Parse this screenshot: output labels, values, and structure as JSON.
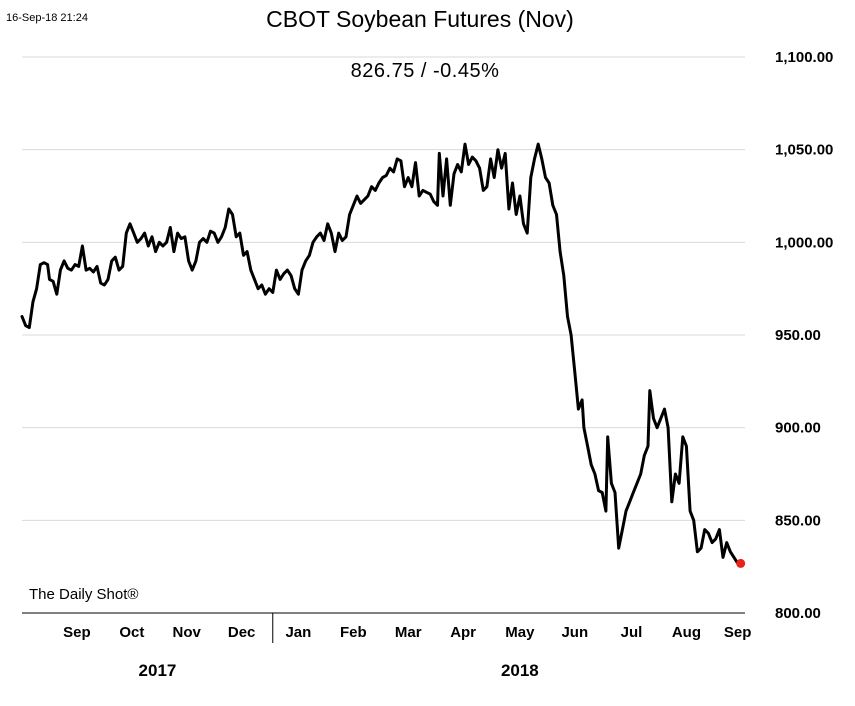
{
  "header": {
    "timestamp": "16-Sep-18 21:24",
    "title": "CBOT Soybean Futures (Nov)",
    "last_value": "826.75  /  -0.45%",
    "source": "The Daily Shot®"
  },
  "colors": {
    "line": "#000000",
    "marker": "#e8231c",
    "grid": "#d9d9d9",
    "axis": "#000000"
  },
  "chart_data": {
    "type": "line",
    "title": "CBOT Soybean Futures (Nov)",
    "xlabel": "",
    "ylabel": "",
    "ylim": [
      800,
      1100
    ],
    "yticks": [
      800,
      850,
      900,
      950,
      1000,
      1050,
      1100
    ],
    "ytick_labels": [
      "800.00",
      "850.00",
      "900.00",
      "950.00",
      "1,000.00",
      "1,050.00",
      "1,100.00"
    ],
    "y_axis_side": "right",
    "grid": "horizontal",
    "legend": "none",
    "x_range": [
      "2017-08-17",
      "2018-09-16"
    ],
    "month_ticks": [
      {
        "label": "Sep",
        "date": "2017-09-16"
      },
      {
        "label": "Oct",
        "date": "2017-10-16"
      },
      {
        "label": "Nov",
        "date": "2017-11-15"
      },
      {
        "label": "Dec",
        "date": "2017-12-15"
      },
      {
        "label": "Jan",
        "date": "2018-01-15"
      },
      {
        "label": "Feb",
        "date": "2018-02-14"
      },
      {
        "label": "Mar",
        "date": "2018-03-16"
      },
      {
        "label": "Apr",
        "date": "2018-04-15"
      },
      {
        "label": "May",
        "date": "2018-05-16"
      },
      {
        "label": "Jun",
        "date": "2018-06-15"
      },
      {
        "label": "Jul",
        "date": "2018-07-16"
      },
      {
        "label": "Aug",
        "date": "2018-08-15"
      },
      {
        "label": "Sep",
        "date": "2018-09-12"
      }
    ],
    "year_labels": [
      {
        "label": "2017",
        "date": "2017-10-30"
      },
      {
        "label": "2018",
        "date": "2018-05-16"
      }
    ],
    "year_divider": "2018-01-01",
    "series": [
      {
        "last_value": 826.75,
        "change_pct": -0.45,
        "points": [
          [
            "2017-08-17",
            960
          ],
          [
            "2017-08-19",
            955
          ],
          [
            "2017-08-21",
            954
          ],
          [
            "2017-08-23",
            968
          ],
          [
            "2017-08-25",
            975
          ],
          [
            "2017-08-27",
            988
          ],
          [
            "2017-08-29",
            989
          ],
          [
            "2017-08-31",
            988
          ],
          [
            "2017-09-01",
            980
          ],
          [
            "2017-09-03",
            979
          ],
          [
            "2017-09-05",
            972
          ],
          [
            "2017-09-07",
            985
          ],
          [
            "2017-09-09",
            990
          ],
          [
            "2017-09-11",
            986
          ],
          [
            "2017-09-13",
            985
          ],
          [
            "2017-09-15",
            988
          ],
          [
            "2017-09-17",
            987
          ],
          [
            "2017-09-19",
            998
          ],
          [
            "2017-09-21",
            985
          ],
          [
            "2017-09-23",
            986
          ],
          [
            "2017-09-25",
            984
          ],
          [
            "2017-09-27",
            987
          ],
          [
            "2017-09-29",
            978
          ],
          [
            "2017-10-01",
            977
          ],
          [
            "2017-10-03",
            980
          ],
          [
            "2017-10-05",
            990
          ],
          [
            "2017-10-07",
            992
          ],
          [
            "2017-10-09",
            985
          ],
          [
            "2017-10-11",
            987
          ],
          [
            "2017-10-13",
            1005
          ],
          [
            "2017-10-15",
            1010
          ],
          [
            "2017-10-17",
            1005
          ],
          [
            "2017-10-19",
            1000
          ],
          [
            "2017-10-21",
            1002
          ],
          [
            "2017-10-23",
            1005
          ],
          [
            "2017-10-25",
            998
          ],
          [
            "2017-10-27",
            1003
          ],
          [
            "2017-10-29",
            995
          ],
          [
            "2017-10-31",
            1000
          ],
          [
            "2017-11-02",
            998
          ],
          [
            "2017-11-04",
            1000
          ],
          [
            "2017-11-06",
            1008
          ],
          [
            "2017-11-08",
            995
          ],
          [
            "2017-11-10",
            1005
          ],
          [
            "2017-11-12",
            1002
          ],
          [
            "2017-11-14",
            1003
          ],
          [
            "2017-11-16",
            990
          ],
          [
            "2017-11-18",
            985
          ],
          [
            "2017-11-20",
            990
          ],
          [
            "2017-11-22",
            1000
          ],
          [
            "2017-11-24",
            1002
          ],
          [
            "2017-11-26",
            1000
          ],
          [
            "2017-11-28",
            1006
          ],
          [
            "2017-11-30",
            1005
          ],
          [
            "2017-12-02",
            1000
          ],
          [
            "2017-12-04",
            1003
          ],
          [
            "2017-12-06",
            1008
          ],
          [
            "2017-12-08",
            1018
          ],
          [
            "2017-12-10",
            1015
          ],
          [
            "2017-12-12",
            1003
          ],
          [
            "2017-12-14",
            1005
          ],
          [
            "2017-12-16",
            993
          ],
          [
            "2017-12-18",
            995
          ],
          [
            "2017-12-20",
            985
          ],
          [
            "2017-12-22",
            980
          ],
          [
            "2017-12-24",
            975
          ],
          [
            "2017-12-26",
            977
          ],
          [
            "2017-12-28",
            972
          ],
          [
            "2017-12-30",
            975
          ],
          [
            "2018-01-01",
            973
          ],
          [
            "2018-01-03",
            985
          ],
          [
            "2018-01-05",
            980
          ],
          [
            "2018-01-07",
            983
          ],
          [
            "2018-01-09",
            985
          ],
          [
            "2018-01-11",
            982
          ],
          [
            "2018-01-13",
            975
          ],
          [
            "2018-01-15",
            972
          ],
          [
            "2018-01-17",
            985
          ],
          [
            "2018-01-19",
            990
          ],
          [
            "2018-01-21",
            993
          ],
          [
            "2018-01-23",
            1000
          ],
          [
            "2018-01-25",
            1003
          ],
          [
            "2018-01-27",
            1005
          ],
          [
            "2018-01-29",
            1001
          ],
          [
            "2018-01-31",
            1010
          ],
          [
            "2018-02-02",
            1005
          ],
          [
            "2018-02-04",
            995
          ],
          [
            "2018-02-06",
            1005
          ],
          [
            "2018-02-08",
            1001
          ],
          [
            "2018-02-10",
            1003
          ],
          [
            "2018-02-12",
            1015
          ],
          [
            "2018-02-14",
            1020
          ],
          [
            "2018-02-16",
            1025
          ],
          [
            "2018-02-18",
            1021
          ],
          [
            "2018-02-20",
            1023
          ],
          [
            "2018-02-22",
            1025
          ],
          [
            "2018-02-24",
            1030
          ],
          [
            "2018-02-26",
            1028
          ],
          [
            "2018-02-28",
            1032
          ],
          [
            "2018-03-02",
            1035
          ],
          [
            "2018-03-04",
            1036
          ],
          [
            "2018-03-06",
            1040
          ],
          [
            "2018-03-08",
            1038
          ],
          [
            "2018-03-10",
            1045
          ],
          [
            "2018-03-12",
            1044
          ],
          [
            "2018-03-14",
            1030
          ],
          [
            "2018-03-16",
            1035
          ],
          [
            "2018-03-18",
            1030
          ],
          [
            "2018-03-20",
            1043
          ],
          [
            "2018-03-22",
            1025
          ],
          [
            "2018-03-24",
            1028
          ],
          [
            "2018-03-26",
            1027
          ],
          [
            "2018-03-28",
            1026
          ],
          [
            "2018-03-30",
            1022
          ],
          [
            "2018-04-01",
            1020
          ],
          [
            "2018-04-02",
            1048
          ],
          [
            "2018-04-04",
            1025
          ],
          [
            "2018-04-06",
            1045
          ],
          [
            "2018-04-08",
            1020
          ],
          [
            "2018-04-10",
            1037
          ],
          [
            "2018-04-12",
            1042
          ],
          [
            "2018-04-14",
            1038
          ],
          [
            "2018-04-16",
            1053
          ],
          [
            "2018-04-18",
            1042
          ],
          [
            "2018-04-20",
            1046
          ],
          [
            "2018-04-22",
            1044
          ],
          [
            "2018-04-24",
            1040
          ],
          [
            "2018-04-26",
            1028
          ],
          [
            "2018-04-28",
            1030
          ],
          [
            "2018-04-30",
            1045
          ],
          [
            "2018-05-02",
            1035
          ],
          [
            "2018-05-04",
            1050
          ],
          [
            "2018-05-06",
            1040
          ],
          [
            "2018-05-08",
            1048
          ],
          [
            "2018-05-10",
            1018
          ],
          [
            "2018-05-12",
            1032
          ],
          [
            "2018-05-14",
            1015
          ],
          [
            "2018-05-16",
            1025
          ],
          [
            "2018-05-18",
            1010
          ],
          [
            "2018-05-20",
            1005
          ],
          [
            "2018-05-22",
            1035
          ],
          [
            "2018-05-24",
            1045
          ],
          [
            "2018-05-26",
            1053
          ],
          [
            "2018-05-28",
            1045
          ],
          [
            "2018-05-30",
            1035
          ],
          [
            "2018-06-01",
            1032
          ],
          [
            "2018-06-03",
            1020
          ],
          [
            "2018-06-05",
            1015
          ],
          [
            "2018-06-07",
            995
          ],
          [
            "2018-06-09",
            982
          ],
          [
            "2018-06-11",
            960
          ],
          [
            "2018-06-13",
            950
          ],
          [
            "2018-06-15",
            930
          ],
          [
            "2018-06-17",
            910
          ],
          [
            "2018-06-19",
            915
          ],
          [
            "2018-06-20",
            900
          ],
          [
            "2018-06-22",
            890
          ],
          [
            "2018-06-24",
            880
          ],
          [
            "2018-06-26",
            875
          ],
          [
            "2018-06-28",
            866
          ],
          [
            "2018-06-30",
            865
          ],
          [
            "2018-07-02",
            855
          ],
          [
            "2018-07-03",
            895
          ],
          [
            "2018-07-05",
            870
          ],
          [
            "2018-07-07",
            865
          ],
          [
            "2018-07-09",
            835
          ],
          [
            "2018-07-11",
            845
          ],
          [
            "2018-07-13",
            855
          ],
          [
            "2018-07-15",
            860
          ],
          [
            "2018-07-17",
            865
          ],
          [
            "2018-07-19",
            870
          ],
          [
            "2018-07-21",
            875
          ],
          [
            "2018-07-23",
            885
          ],
          [
            "2018-07-25",
            890
          ],
          [
            "2018-07-26",
            920
          ],
          [
            "2018-07-28",
            905
          ],
          [
            "2018-07-30",
            900
          ],
          [
            "2018-08-01",
            905
          ],
          [
            "2018-08-03",
            910
          ],
          [
            "2018-08-05",
            900
          ],
          [
            "2018-08-07",
            860
          ],
          [
            "2018-08-09",
            875
          ],
          [
            "2018-08-11",
            870
          ],
          [
            "2018-08-13",
            895
          ],
          [
            "2018-08-15",
            890
          ],
          [
            "2018-08-17",
            855
          ],
          [
            "2018-08-19",
            850
          ],
          [
            "2018-08-21",
            833
          ],
          [
            "2018-08-23",
            835
          ],
          [
            "2018-08-25",
            845
          ],
          [
            "2018-08-27",
            843
          ],
          [
            "2018-08-29",
            838
          ],
          [
            "2018-08-31",
            840
          ],
          [
            "2018-09-02",
            845
          ],
          [
            "2018-09-04",
            830
          ],
          [
            "2018-09-06",
            838
          ],
          [
            "2018-09-08",
            833
          ],
          [
            "2018-09-10",
            830
          ],
          [
            "2018-09-12",
            826.75
          ]
        ]
      }
    ]
  }
}
